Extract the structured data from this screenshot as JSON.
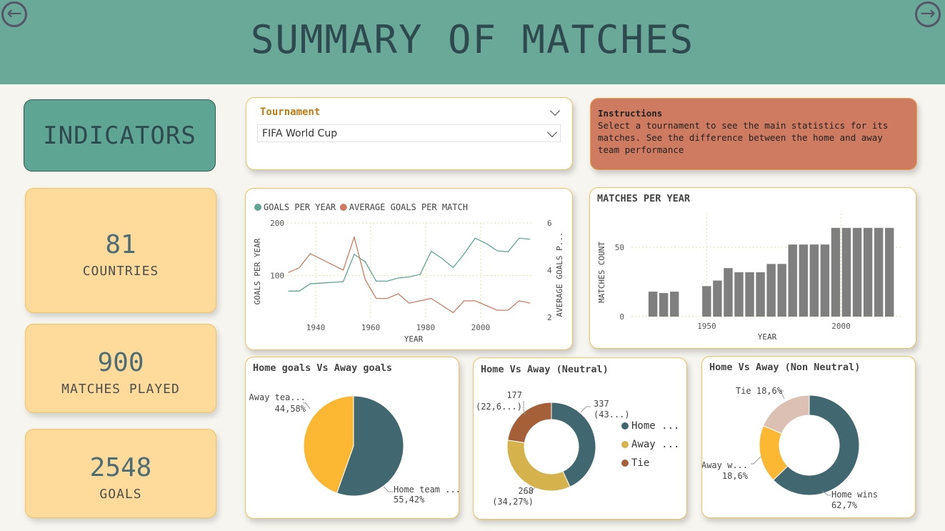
{
  "header": {
    "title": "SUMMARY OF MATCHES",
    "back_icon": "arrow-left-circle-icon",
    "forward_icon": "arrow-right-circle-icon"
  },
  "indicators": {
    "title": "INDICATORS"
  },
  "kpis": [
    {
      "value": "81",
      "label": "COUNTRIES"
    },
    {
      "value": "900",
      "label": "MATCHES PLAYED"
    },
    {
      "value": "2548",
      "label": "GOALS"
    }
  ],
  "slicer": {
    "label": "Tournament",
    "selected": "FIFA World Cup"
  },
  "instructions": {
    "title": "Instructions",
    "text": "Select a tournament to see the main statistics for its matches. See the difference between the home and away team performance"
  },
  "colors": {
    "header": "#6aa898",
    "teal": "#5fa592",
    "orange": "#cf7b61",
    "bar": "#7f7f7f",
    "pie_home": "#416870",
    "pie_away": "#fdb833",
    "neutral_home": "#416870",
    "neutral_away": "#d6b24c",
    "neutral_tie": "#a5603a",
    "nonneutral_tie": "#dcc0b3"
  },
  "chart_data": [
    {
      "type": "line",
      "title": "",
      "legend": [
        "GOALS PER YEAR",
        "AVERAGE GOALS PER MATCH"
      ],
      "legend_position": "top-left",
      "xlabel": "YEAR",
      "ylabel": "GOALS PER YEAR",
      "ylabel_right": "AVERAGE GOALS P...",
      "x_ticks": [
        "1940",
        "1960",
        "1980",
        "2000"
      ],
      "y_ticks": [
        "100",
        "200"
      ],
      "y_right_ticks": [
        "2",
        "4",
        "6"
      ],
      "xlim": [
        1927,
        2019
      ],
      "ylim": [
        20,
        200
      ],
      "ylim_right": [
        2,
        6
      ],
      "x": [
        1930,
        1934,
        1938,
        1950,
        1954,
        1958,
        1962,
        1966,
        1970,
        1974,
        1978,
        1982,
        1986,
        1990,
        1994,
        1998,
        2002,
        2006,
        2010,
        2014,
        2018
      ],
      "series": [
        {
          "name": "GOALS PER YEAR",
          "axis": "left",
          "values": [
            70,
            70,
            84,
            88,
            140,
            126,
            89,
            89,
            95,
            97,
            102,
            146,
            132,
            115,
            141,
            171,
            161,
            147,
            145,
            171,
            169
          ]
        },
        {
          "name": "AVERAGE GOALS PER MATCH",
          "axis": "right",
          "values": [
            3.9,
            4.1,
            4.7,
            4.0,
            5.4,
            3.6,
            2.8,
            2.8,
            3.0,
            2.6,
            2.7,
            2.8,
            2.5,
            2.2,
            2.7,
            2.7,
            2.5,
            2.3,
            2.3,
            2.7,
            2.6
          ]
        }
      ]
    },
    {
      "type": "bar",
      "title": "MATCHES PER YEAR",
      "xlabel": "YEAR",
      "ylabel": "MATCHES COUNT",
      "x_ticks": [
        "1950",
        "2000"
      ],
      "y_ticks": [
        "0",
        "50"
      ],
      "xlim": [
        1922,
        2023
      ],
      "ylim": [
        0,
        66
      ],
      "categories": [
        "1930",
        "1934",
        "1938",
        "1950",
        "1954",
        "1958",
        "1962",
        "1966",
        "1970",
        "1974",
        "1978",
        "1982",
        "1986",
        "1990",
        "1994",
        "1998",
        "2002",
        "2006",
        "2010",
        "2014",
        "2018"
      ],
      "values": [
        18,
        17,
        18,
        22,
        26,
        35,
        32,
        32,
        32,
        38,
        38,
        52,
        52,
        52,
        52,
        64,
        64,
        64,
        64,
        64,
        64
      ]
    },
    {
      "type": "pie",
      "title": "Home goals Vs Away goals",
      "labels": [
        "Home team ...",
        "Away tea..."
      ],
      "values": [
        55.42,
        44.58
      ],
      "data_labels": [
        "55,42%",
        "44,58%"
      ]
    },
    {
      "type": "pie",
      "title": "Home Vs Away (Neutral)",
      "donut": true,
      "legend": [
        "Home ...",
        "Away ...",
        "Tie"
      ],
      "legend_position": "right",
      "values": [
        337,
        268,
        177
      ],
      "data_labels": [
        [
          "337",
          "(43...)"
        ],
        [
          "268",
          "(34,27%)"
        ],
        [
          "177",
          "(22,6...)"
        ]
      ]
    },
    {
      "type": "pie",
      "title": "Home Vs Away (Non Neutral)",
      "donut": true,
      "labels": [
        "Home wins",
        "Away w...",
        "Tie 18,6%"
      ],
      "values": [
        62.7,
        18.6,
        18.6
      ],
      "data_labels": [
        "62,7%",
        "18,6%",
        ""
      ]
    }
  ]
}
